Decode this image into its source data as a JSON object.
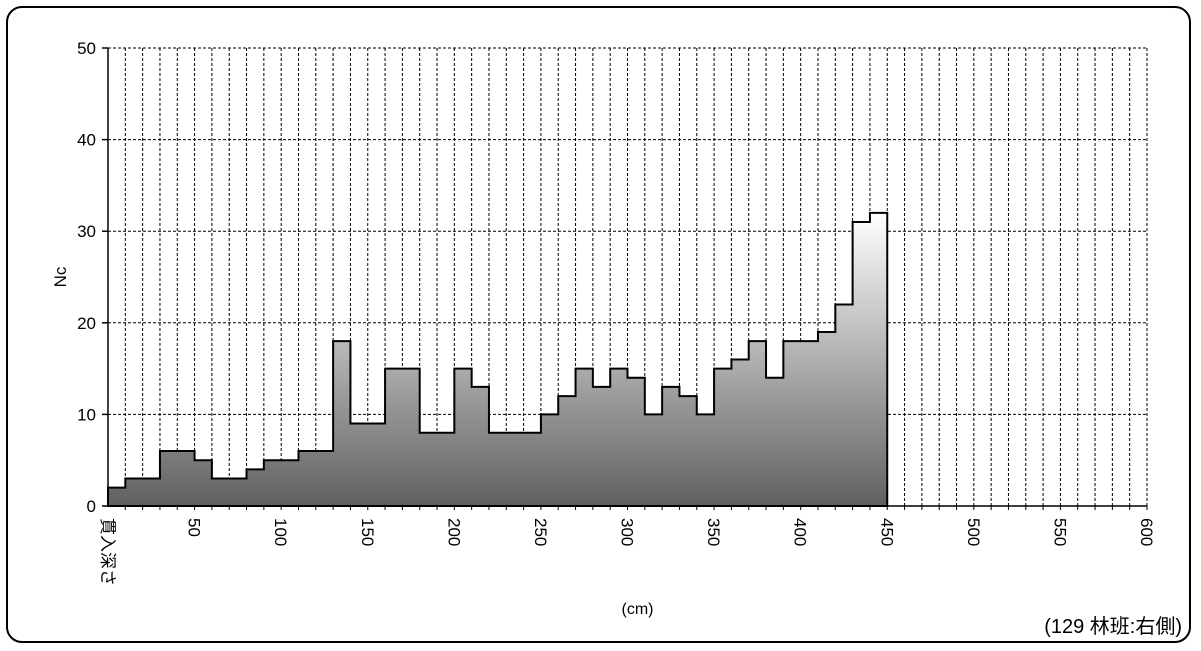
{
  "chart_data": {
    "type": "area",
    "step": true,
    "ylabel": "Nc",
    "xlabel": "(cm)",
    "x_start_label": "貫入深さ",
    "caption": "(129 林班:右側)",
    "ylim": [
      0,
      50
    ],
    "xlim": [
      0,
      600
    ],
    "yticks": [
      0,
      10,
      20,
      30,
      40,
      50
    ],
    "xticks": [
      50,
      100,
      150,
      200,
      250,
      300,
      350,
      400,
      450,
      500,
      550,
      600
    ],
    "x_step": 10,
    "grid": true,
    "depth": [
      10,
      20,
      30,
      40,
      50,
      60,
      70,
      80,
      90,
      100,
      110,
      120,
      130,
      140,
      150,
      160,
      170,
      180,
      190,
      200,
      210,
      220,
      230,
      240,
      250,
      260,
      270,
      280,
      290,
      300,
      310,
      320,
      330,
      340,
      350,
      360,
      370,
      380,
      390,
      400,
      410,
      420,
      430,
      440,
      450
    ],
    "values": [
      2,
      3,
      3,
      6,
      6,
      5,
      3,
      3,
      4,
      5,
      5,
      6,
      6,
      18,
      9,
      9,
      15,
      15,
      8,
      8,
      15,
      13,
      8,
      8,
      8,
      10,
      12,
      15,
      13,
      15,
      14,
      10,
      13,
      12,
      10,
      15,
      16,
      18,
      14,
      18,
      18,
      19,
      22,
      31,
      32
    ],
    "colors": {
      "fill_dark": "#606060",
      "fill_light": "#ffffff",
      "line": "#000000",
      "grid": "#000000"
    }
  }
}
